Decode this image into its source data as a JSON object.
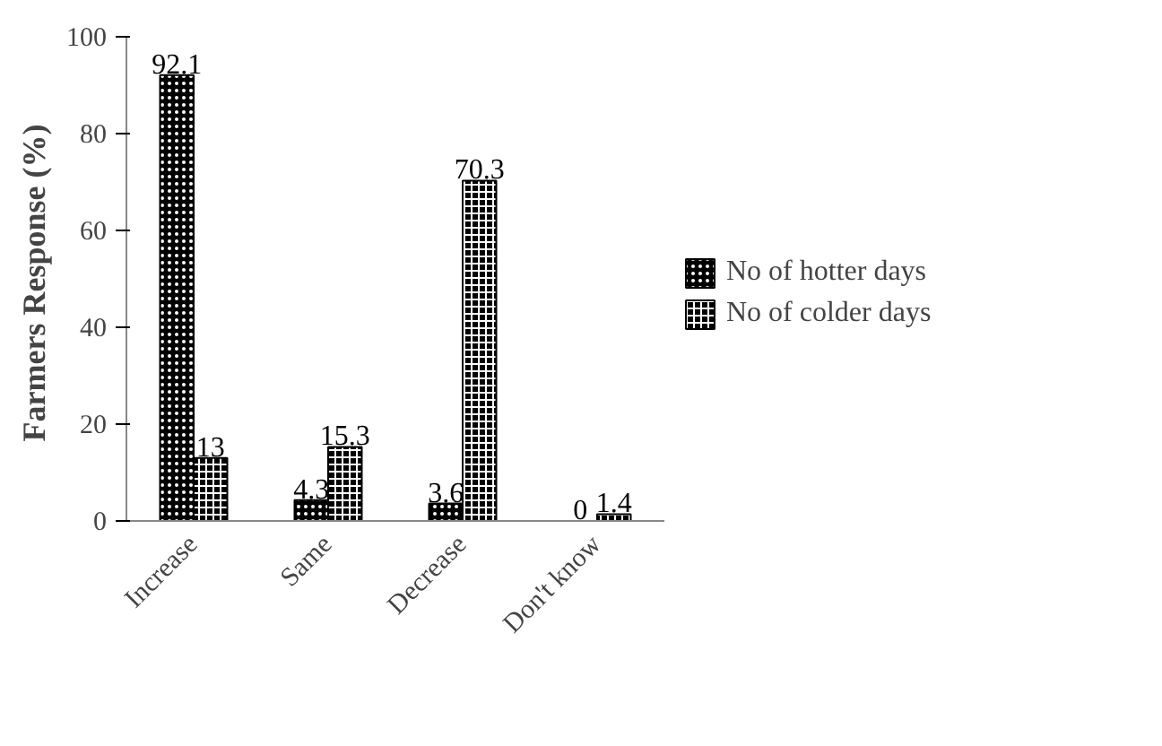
{
  "chart_data": {
    "type": "bar",
    "ylabel": "Farmers  Response (%)",
    "categories": [
      "Increase",
      "Same",
      "Decrease",
      "Don't know"
    ],
    "series": [
      {
        "name": "No of hotter days",
        "color": "#000000",
        "values": [
          92.1,
          4.3,
          3.6,
          0
        ]
      },
      {
        "name": "No of colder days",
        "color": "#000000",
        "values": [
          13,
          15.3,
          70.3,
          1.4
        ]
      }
    ],
    "ylim": [
      0,
      100
    ],
    "yticks": [
      0,
      20,
      40,
      60,
      80,
      100
    ],
    "grid": false,
    "legend": "right",
    "data_labels": true
  }
}
